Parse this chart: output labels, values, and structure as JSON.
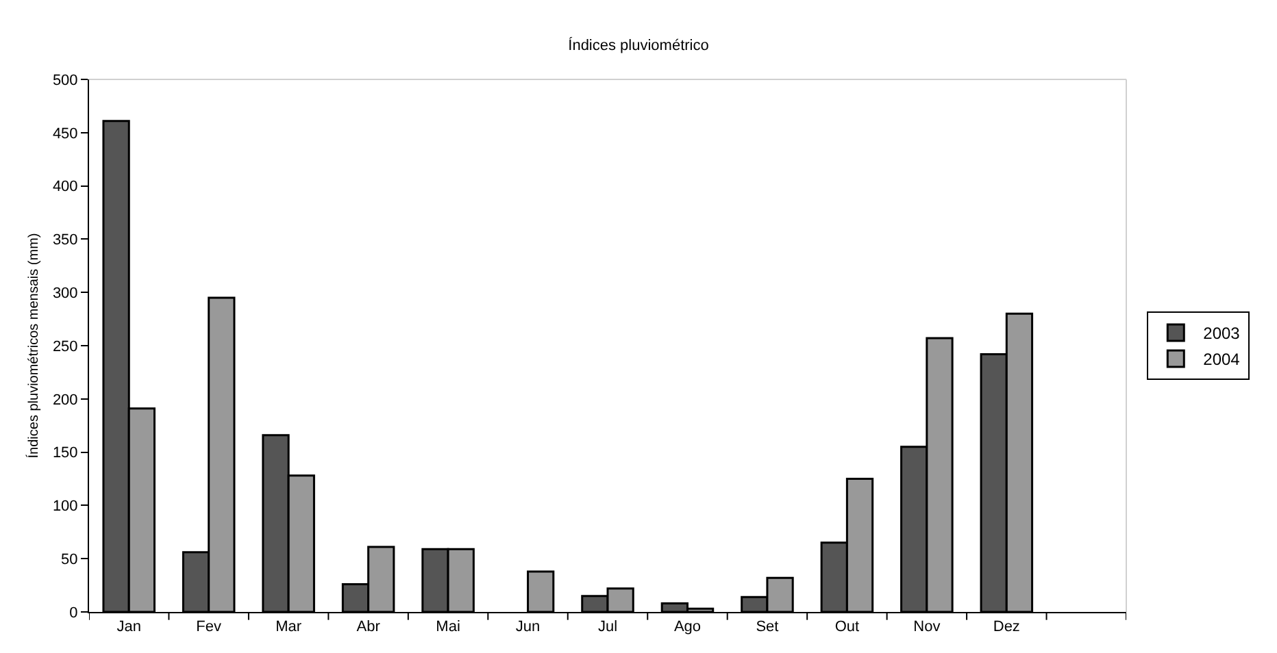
{
  "chart_data": {
    "type": "bar",
    "title": "Índices pluviométrico",
    "ylabel": "Índices pluviométricos mensais (mm)",
    "categories": [
      "Jan",
      "Fev",
      "Mar",
      "Abr",
      "Mai",
      "Jun",
      "Jul",
      "Ago",
      "Set",
      "Out",
      "Nov",
      "Dez",
      null
    ],
    "series": [
      {
        "name": "2003",
        "color": "#555555",
        "values": [
          461,
          56,
          166,
          26,
          59,
          null,
          15,
          8,
          14,
          65,
          155,
          242,
          null
        ]
      },
      {
        "name": "2004",
        "color": "#999999",
        "values": [
          191,
          295,
          128,
          61,
          59,
          38,
          22,
          3,
          32,
          125,
          257,
          280,
          null
        ]
      }
    ],
    "ylim": [
      0,
      500
    ],
    "yticks": [
      0,
      50,
      100,
      150,
      200,
      250,
      300,
      350,
      400,
      450,
      500
    ],
    "grid": false,
    "legend": "right"
  }
}
